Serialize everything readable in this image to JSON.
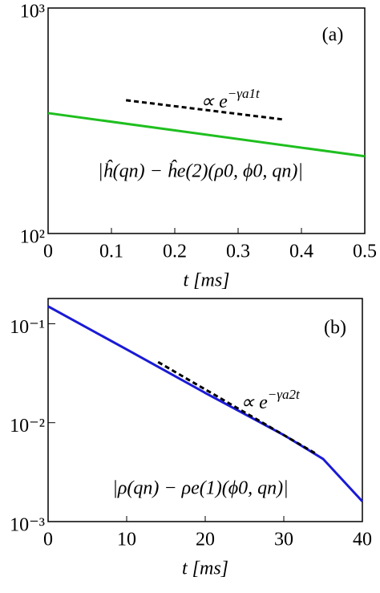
{
  "chart_data": [
    {
      "type": "line",
      "panel_label": "(a)",
      "xlabel": "t [ms]",
      "ylog": true,
      "xlim": [
        0,
        0.5
      ],
      "xticks": [
        0,
        0.1,
        0.2,
        0.3,
        0.4,
        0.5
      ],
      "ylim": [
        100,
        1000
      ],
      "yticks": [
        {
          "value": 100,
          "label": "10²"
        },
        {
          "value": 1000,
          "label": "10³"
        }
      ],
      "series": [
        {
          "color": "#1fbf1f",
          "style": "solid",
          "x": [
            0,
            0.5
          ],
          "values": [
            342,
            220
          ]
        },
        {
          "color": "#000000",
          "style": "dashed",
          "x": [
            0.123,
            0.373
          ],
          "values": [
            390,
            320
          ]
        }
      ],
      "slope_annotation": {
        "base": "∝ e",
        "exponent": "−γa1t"
      },
      "curve_annotation": "|ĥ(qn) − ĥe(2)(ρ0, ϕ0, qn)|"
    },
    {
      "type": "line",
      "panel_label": "(b)",
      "xlabel": "t [ms]",
      "ylog": true,
      "xlim": [
        0,
        40
      ],
      "xticks": [
        0,
        10,
        20,
        30,
        40
      ],
      "ylim": [
        0.001,
        0.18
      ],
      "yticks": [
        {
          "value": 0.1,
          "label": "10⁻¹"
        },
        {
          "value": 0.01,
          "label": "10⁻²"
        },
        {
          "value": 0.001,
          "label": "10⁻³"
        }
      ],
      "series": [
        {
          "color": "#1a1ad6",
          "style": "solid",
          "x": [
            0,
            10,
            20,
            30,
            35,
            40
          ],
          "values": [
            0.15,
            0.055,
            0.02,
            0.0075,
            0.0043,
            0.0016
          ]
        },
        {
          "color": "#000000",
          "style": "dashed",
          "x": [
            14,
            34.2
          ],
          "values": [
            0.041,
            0.0048
          ]
        }
      ],
      "slope_annotation": {
        "base": "∝ e",
        "exponent": "−γa2t"
      },
      "curve_annotation": "|ρ(qn) − ρe(1)(ϕ0, qn)|"
    }
  ]
}
